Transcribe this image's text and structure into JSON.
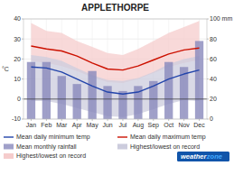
{
  "chart_data": {
    "type": "bar",
    "title": "APPLETHORPE",
    "y_label": "°C",
    "categories": [
      "Jan",
      "Feb",
      "Mar",
      "Apr",
      "May",
      "Jun",
      "Jul",
      "Aug",
      "Sep",
      "Oct",
      "Nov",
      "Dec"
    ],
    "series": [
      {
        "name": "Mean daily minimum temp",
        "type": "line",
        "color": "#2244aa",
        "values": [
          16.0,
          15.5,
          13.5,
          10.0,
          6.5,
          3.5,
          2.5,
          3.5,
          6.5,
          10.0,
          12.5,
          14.5
        ]
      },
      {
        "name": "Mean daily maximum temp",
        "type": "line",
        "color": "#cc1100",
        "values": [
          26.5,
          25.0,
          24.0,
          21.5,
          18.0,
          15.0,
          14.5,
          16.5,
          19.5,
          22.5,
          24.5,
          25.5
        ]
      },
      {
        "name": "Mean monthly rainfall",
        "type": "bar",
        "axis": "y2",
        "color": "#8888bb",
        "values": [
          57,
          57,
          43,
          35,
          48,
          33,
          28,
          33,
          38,
          57,
          52,
          78
        ]
      },
      {
        "name": "Highest/lowest on record",
        "type": "band",
        "color": "#ccccdd",
        "low": [
          -1.0,
          -1.0,
          -2.5,
          -4.5,
          -6.5,
          -8.5,
          -9.0,
          -7.5,
          -5.0,
          -2.5,
          -0.5,
          -1.0
        ],
        "high": [
          22.0,
          21.0,
          19.0,
          15.5,
          12.0,
          9.5,
          9.0,
          10.5,
          13.5,
          17.5,
          20.0,
          21.5
        ]
      },
      {
        "name": "Highest/lowest on record",
        "type": "band",
        "color": "#f5cccc",
        "low": [
          19.0,
          18.0,
          16.5,
          14.0,
          11.0,
          8.5,
          8.0,
          10.0,
          13.0,
          16.0,
          18.0,
          19.5
        ],
        "high": [
          38.0,
          34.0,
          33.0,
          29.0,
          26.0,
          23.0,
          22.0,
          25.0,
          29.0,
          33.0,
          36.0,
          39.0
        ]
      }
    ],
    "ylim": [
      -10,
      40
    ],
    "yticks": [
      -10,
      0,
      10,
      20,
      30,
      40
    ],
    "y2lim": [
      0,
      100
    ],
    "y2ticks": [
      0,
      20,
      40,
      60,
      80,
      {
        "value": 100,
        "label": "100 mm"
      }
    ],
    "annotations": [
      "weather",
      "zone"
    ],
    "grid": true,
    "legend": "bottom"
  }
}
